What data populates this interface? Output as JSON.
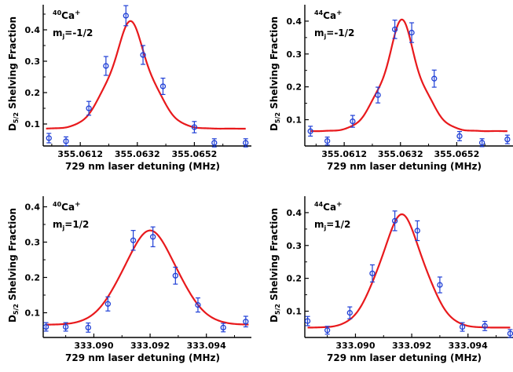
{
  "figure": {
    "font_note": "",
    "colors": {
      "fit_line": "#e8191c",
      "data_points": "#1f3fd6",
      "axes": "#000000"
    }
  },
  "chart_data": [
    {
      "type": "scatter",
      "ion": "40",
      "ion_element": "Ca",
      "ion_charge": "+",
      "mj_prefix": "m",
      "mj_sub": "j",
      "mj_value": "=-1/2",
      "xlabel": "729 nm laser detuning (MHz)",
      "ylabel": {
        "main": "D",
        "sub": "5/2",
        "rest": " Shelving Fraction"
      },
      "xlim": [
        355.0599,
        355.0672
      ],
      "ylim": [
        0.03,
        0.48
      ],
      "xticks": [
        355.0612,
        355.0632,
        355.0652
      ],
      "xtick_labels": [
        "355.0612",
        "355.0632",
        "355.0652"
      ],
      "yticks": [
        0.1,
        0.2,
        0.3,
        0.4
      ],
      "ytick_labels": [
        "0.1",
        "0.2",
        "0.3",
        "0.4"
      ],
      "points": [
        {
          "x": 355.0601,
          "y": 0.055,
          "err": 0.015
        },
        {
          "x": 355.0607,
          "y": 0.045,
          "err": 0.014
        },
        {
          "x": 355.0615,
          "y": 0.15,
          "err": 0.022
        },
        {
          "x": 355.0621,
          "y": 0.285,
          "err": 0.03
        },
        {
          "x": 355.0628,
          "y": 0.445,
          "err": 0.032
        },
        {
          "x": 355.0634,
          "y": 0.32,
          "err": 0.03
        },
        {
          "x": 355.0641,
          "y": 0.22,
          "err": 0.026
        },
        {
          "x": 355.0652,
          "y": 0.09,
          "err": 0.018
        },
        {
          "x": 355.0659,
          "y": 0.04,
          "err": 0.013
        },
        {
          "x": 355.067,
          "y": 0.04,
          "err": 0.013
        }
      ],
      "fit": {
        "x0": 355.06296,
        "amp": 0.343,
        "base": 0.085,
        "width": 0.00078,
        "ripple": 0.23,
        "fmin": 355.06,
        "fmax": 355.067
      }
    },
    {
      "type": "scatter",
      "ion": "44",
      "ion_element": "Ca",
      "ion_charge": "+",
      "mj_prefix": "m",
      "mj_sub": "j",
      "mj_value": "=-1/2",
      "xlabel": "729 nm laser detuning (MHz)",
      "ylabel": {
        "main": "D",
        "sub": "5/2",
        "rest": " Shelving Fraction"
      },
      "xlim": [
        355.0598,
        355.0672
      ],
      "ylim": [
        0.02,
        0.45
      ],
      "xticks": [
        355.0612,
        355.0632,
        355.0652
      ],
      "xtick_labels": [
        "355.0612",
        "355.0632",
        "355.0652"
      ],
      "yticks": [
        0.1,
        0.2,
        0.3,
        0.4
      ],
      "ytick_labels": [
        "0.1",
        "0.2",
        "0.3",
        "0.4"
      ],
      "points": [
        {
          "x": 355.06,
          "y": 0.065,
          "err": 0.015
        },
        {
          "x": 355.0606,
          "y": 0.035,
          "err": 0.012
        },
        {
          "x": 355.0615,
          "y": 0.095,
          "err": 0.018
        },
        {
          "x": 355.0624,
          "y": 0.175,
          "err": 0.024
        },
        {
          "x": 355.063,
          "y": 0.375,
          "err": 0.028
        },
        {
          "x": 355.0636,
          "y": 0.365,
          "err": 0.03
        },
        {
          "x": 355.0644,
          "y": 0.225,
          "err": 0.026
        },
        {
          "x": 355.0653,
          "y": 0.05,
          "err": 0.014
        },
        {
          "x": 355.0661,
          "y": 0.03,
          "err": 0.012
        },
        {
          "x": 355.067,
          "y": 0.04,
          "err": 0.013
        }
      ],
      "fit": {
        "x0": 355.06325,
        "amp": 0.34,
        "base": 0.065,
        "width": 0.00075,
        "ripple": 0.3,
        "fmin": 355.06,
        "fmax": 355.067
      }
    },
    {
      "type": "scatter",
      "ion": "40",
      "ion_element": "Ca",
      "ion_charge": "+",
      "mj_prefix": "m",
      "mj_sub": "j",
      "mj_value": "=1/2",
      "xlabel": "729 nm laser detuning (MHz)",
      "ylabel": {
        "main": "D",
        "sub": "5/2",
        "rest": " Shelving Fraction"
      },
      "xlim": [
        333.0882,
        333.0956
      ],
      "ylim": [
        0.03,
        0.43
      ],
      "xticks": [
        333.09,
        333.092,
        333.094
      ],
      "xtick_labels": [
        "333.090",
        "333.092",
        "333.094"
      ],
      "yticks": [
        0.1,
        0.2,
        0.3,
        0.4
      ],
      "ytick_labels": [
        "0.1",
        "0.2",
        "0.3",
        "0.4"
      ],
      "points": [
        {
          "x": 333.0883,
          "y": 0.06,
          "err": 0.012
        },
        {
          "x": 333.089,
          "y": 0.06,
          "err": 0.012
        },
        {
          "x": 333.0898,
          "y": 0.058,
          "err": 0.013
        },
        {
          "x": 333.0905,
          "y": 0.125,
          "err": 0.02
        },
        {
          "x": 333.0914,
          "y": 0.305,
          "err": 0.028
        },
        {
          "x": 333.0921,
          "y": 0.315,
          "err": 0.028
        },
        {
          "x": 333.0929,
          "y": 0.205,
          "err": 0.024
        },
        {
          "x": 333.0937,
          "y": 0.122,
          "err": 0.02
        },
        {
          "x": 333.0946,
          "y": 0.058,
          "err": 0.012
        },
        {
          "x": 333.0954,
          "y": 0.075,
          "err": 0.015
        }
      ],
      "fit": {
        "x0": 333.092,
        "amp": 0.267,
        "base": 0.066,
        "width": 0.00098,
        "ripple": 0.05,
        "fmin": 333.0883,
        "fmax": 333.0955
      }
    },
    {
      "type": "scatter",
      "ion": "44",
      "ion_element": "Ca",
      "ion_charge": "+",
      "mj_prefix": "m",
      "mj_sub": "j",
      "mj_value": "=1/2",
      "xlabel": "729 nm laser detuning (MHz)",
      "ylabel": {
        "main": "D",
        "sub": "5/2",
        "rest": " Shelving Fraction"
      },
      "xlim": [
        333.0882,
        333.0956
      ],
      "ylim": [
        0.02,
        0.45
      ],
      "xticks": [
        333.09,
        333.092,
        333.094
      ],
      "xtick_labels": [
        "333.090",
        "333.092",
        "333.094"
      ],
      "yticks": [
        0.1,
        0.2,
        0.3,
        0.4
      ],
      "ytick_labels": [
        "0.1",
        "0.2",
        "0.3",
        "0.4"
      ],
      "points": [
        {
          "x": 333.0883,
          "y": 0.07,
          "err": 0.014
        },
        {
          "x": 333.089,
          "y": 0.042,
          "err": 0.012
        },
        {
          "x": 333.0898,
          "y": 0.095,
          "err": 0.018
        },
        {
          "x": 333.0906,
          "y": 0.215,
          "err": 0.026
        },
        {
          "x": 333.0914,
          "y": 0.375,
          "err": 0.03
        },
        {
          "x": 333.0922,
          "y": 0.345,
          "err": 0.03
        },
        {
          "x": 333.093,
          "y": 0.18,
          "err": 0.024
        },
        {
          "x": 333.0938,
          "y": 0.052,
          "err": 0.013
        },
        {
          "x": 333.0946,
          "y": 0.055,
          "err": 0.014
        },
        {
          "x": 333.0955,
          "y": 0.032,
          "err": 0.012
        }
      ],
      "fit": {
        "x0": 333.09165,
        "amp": 0.345,
        "base": 0.05,
        "width": 0.00082,
        "ripple": 0.1,
        "fmin": 333.0883,
        "fmax": 333.0955
      }
    }
  ]
}
